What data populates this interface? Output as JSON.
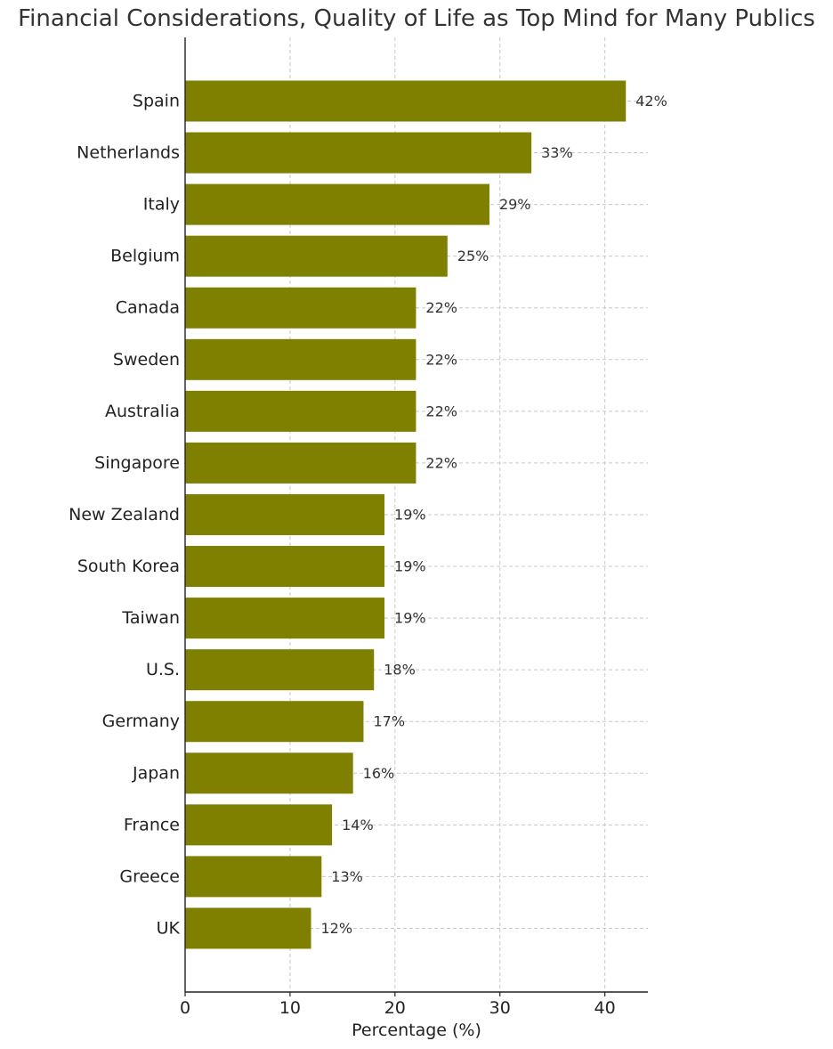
{
  "chart_data": {
    "type": "bar",
    "orientation": "horizontal",
    "title": "Financial Considerations, Quality of Life as Top Mind for Many Publics",
    "xlabel": "Percentage (%)",
    "ylabel": "",
    "categories": [
      "Spain",
      "Netherlands",
      "Italy",
      "Belgium",
      "Canada",
      "Sweden",
      "Australia",
      "Singapore",
      "New Zealand",
      "South Korea",
      "Taiwan",
      "U.S.",
      "Germany",
      "Japan",
      "France",
      "Greece",
      "UK"
    ],
    "values": [
      42,
      33,
      29,
      25,
      22,
      22,
      22,
      22,
      19,
      19,
      19,
      18,
      17,
      16,
      14,
      13,
      12
    ],
    "data_labels": [
      "42%",
      "33%",
      "29%",
      "25%",
      "22%",
      "22%",
      "22%",
      "22%",
      "19%",
      "19%",
      "19%",
      "18%",
      "17%",
      "16%",
      "14%",
      "13%",
      "12%"
    ],
    "xlim": [
      0,
      44.1
    ],
    "xticks": [
      0,
      10,
      20,
      30,
      40
    ],
    "xtick_labels": [
      "0",
      "10",
      "20",
      "30",
      "40"
    ],
    "grid": true,
    "bar_color": "#808000",
    "grid_color": "#c8c8c8",
    "axis_color": "#222222"
  }
}
